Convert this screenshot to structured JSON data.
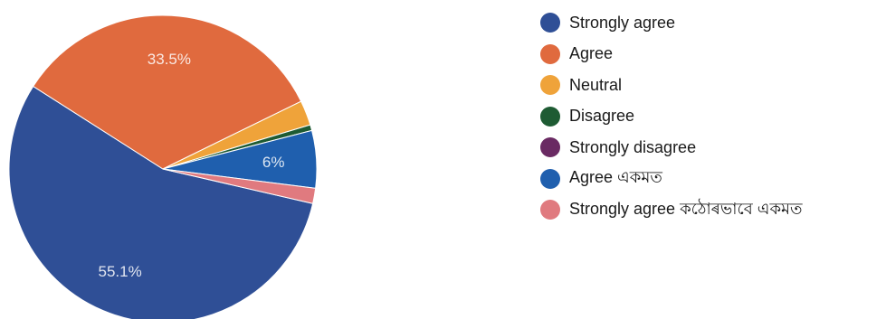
{
  "colors": {
    "strongly_agree": "#2f4f96",
    "agree": "#e06a3e",
    "neutral": "#efa33a",
    "disagree": "#1e5b33",
    "strongly_disagree": "#6a2a63",
    "agree_bn": "#1f5fae",
    "strongly_agree_bn": "#e07a7f",
    "slice_label": "#ffffff"
  },
  "chart_data": {
    "type": "pie",
    "slices": [
      {
        "label": "Strongly agree",
        "value": 55.1,
        "value_label": "55.1%",
        "color": "#2f4f96"
      },
      {
        "label": "Agree",
        "value": 33.5,
        "value_label": "33.5%",
        "color": "#e06a3e"
      },
      {
        "label": "Neutral",
        "value": 2.6,
        "value_label": "",
        "color": "#efa33a"
      },
      {
        "label": "Disagree",
        "value": 0.6,
        "value_label": "",
        "color": "#1e5b33"
      },
      {
        "label": "Strongly disagree",
        "value": 0.0,
        "value_label": "",
        "color": "#6a2a63"
      },
      {
        "label": "Agree একমত",
        "value": 6.0,
        "value_label": "6%",
        "color": "#1f5fae"
      },
      {
        "label": "Strongly agree কঠোৰভাবে একমত",
        "value": 1.6,
        "value_label": "",
        "color": "#e07a7f"
      }
    ],
    "legend_position": "right"
  }
}
